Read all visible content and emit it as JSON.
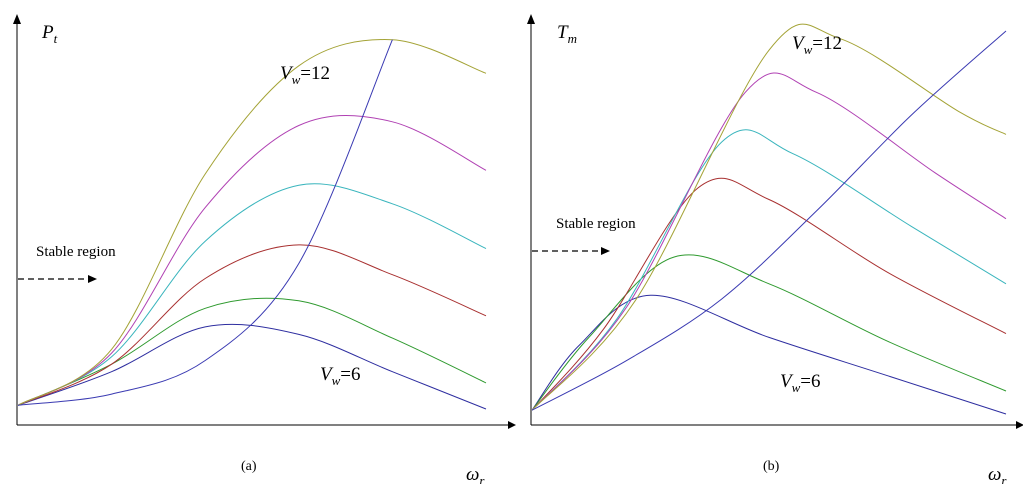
{
  "colors": {
    "axis": "#000000",
    "series": [
      "#2e2ea0",
      "#2f9a2f",
      "#a83030",
      "#3ab5bd",
      "#b041b3",
      "#a4a336"
    ],
    "locus": "#3a3ab2"
  },
  "chart_data": [
    {
      "type": "line",
      "panel_label": "(a)",
      "ylabel_main": "P",
      "ylabel_sub": "t",
      "xlabel_main": "ω",
      "xlabel_sub": "r",
      "annotations": [
        {
          "main": "V",
          "sub": "w",
          "rest": "=12"
        },
        {
          "main": "V",
          "sub": "w",
          "rest": "=6"
        },
        {
          "text": "Stable region"
        }
      ],
      "xlim": [
        0,
        1
      ],
      "ylim": [
        0,
        1
      ],
      "series": [
        {
          "values": [
            [
              0.0,
              0.01
            ],
            [
              0.2,
              0.1
            ],
            [
              0.4,
              0.22
            ],
            [
              0.6,
              0.2
            ],
            [
              0.8,
              0.1
            ],
            [
              1.0,
              0.0
            ]
          ]
        },
        {
          "values": [
            [
              0.0,
              0.01
            ],
            [
              0.2,
              0.12
            ],
            [
              0.4,
              0.27
            ],
            [
              0.6,
              0.29
            ],
            [
              0.8,
              0.19
            ],
            [
              1.0,
              0.07
            ]
          ]
        },
        {
          "values": [
            [
              0.0,
              0.01
            ],
            [
              0.2,
              0.12
            ],
            [
              0.4,
              0.35
            ],
            [
              0.6,
              0.44
            ],
            [
              0.8,
              0.36
            ],
            [
              1.0,
              0.25
            ]
          ]
        },
        {
          "values": [
            [
              0.0,
              0.01
            ],
            [
              0.2,
              0.14
            ],
            [
              0.4,
              0.45
            ],
            [
              0.6,
              0.6
            ],
            [
              0.8,
              0.55
            ],
            [
              1.0,
              0.43
            ]
          ]
        },
        {
          "values": [
            [
              0.0,
              0.01
            ],
            [
              0.2,
              0.15
            ],
            [
              0.4,
              0.54
            ],
            [
              0.6,
              0.76
            ],
            [
              0.8,
              0.77
            ],
            [
              1.0,
              0.64
            ]
          ]
        },
        {
          "values": [
            [
              0.0,
              0.01
            ],
            [
              0.2,
              0.16
            ],
            [
              0.4,
              0.63
            ],
            [
              0.6,
              0.92
            ],
            [
              0.8,
              0.99
            ],
            [
              1.0,
              0.9
            ]
          ]
        },
        {
          "values": [
            [
              0.0,
              0.01
            ],
            [
              0.2,
              0.04
            ],
            [
              0.4,
              0.13
            ],
            [
              0.6,
              0.39
            ],
            [
              0.8,
              0.99
            ]
          ]
        }
      ]
    },
    {
      "type": "line",
      "panel_label": "(b)",
      "ylabel_main": "T",
      "ylabel_sub": "m",
      "xlabel_main": "ω",
      "xlabel_sub": "r",
      "annotations": [
        {
          "main": "V",
          "sub": "w",
          "rest": "=12"
        },
        {
          "main": "V",
          "sub": "w",
          "rest": "=6"
        },
        {
          "text": "Stable region"
        }
      ],
      "xlim": [
        0,
        1
      ],
      "ylim": [
        0,
        1
      ],
      "series": [
        {
          "values": [
            [
              0.0,
              0.01
            ],
            [
              0.1,
              0.18
            ],
            [
              0.25,
              0.31
            ],
            [
              0.5,
              0.2
            ],
            [
              0.75,
              0.1
            ],
            [
              1.0,
              0.0
            ]
          ]
        },
        {
          "values": [
            [
              0.0,
              0.01
            ],
            [
              0.12,
              0.2
            ],
            [
              0.3,
              0.41
            ],
            [
              0.5,
              0.34
            ],
            [
              0.75,
              0.19
            ],
            [
              1.0,
              0.06
            ]
          ]
        },
        {
          "values": [
            [
              0.0,
              0.01
            ],
            [
              0.15,
              0.22
            ],
            [
              0.35,
              0.59
            ],
            [
              0.5,
              0.56
            ],
            [
              0.75,
              0.37
            ],
            [
              1.0,
              0.21
            ]
          ]
        },
        {
          "values": [
            [
              0.0,
              0.01
            ],
            [
              0.18,
              0.25
            ],
            [
              0.4,
              0.71
            ],
            [
              0.55,
              0.68
            ],
            [
              0.8,
              0.49
            ],
            [
              1.0,
              0.34
            ]
          ]
        },
        {
          "values": [
            [
              0.0,
              0.01
            ],
            [
              0.2,
              0.28
            ],
            [
              0.45,
              0.84
            ],
            [
              0.6,
              0.84
            ],
            [
              0.85,
              0.63
            ],
            [
              1.0,
              0.51
            ]
          ]
        },
        {
          "values": [
            [
              0.0,
              0.01
            ],
            [
              0.22,
              0.3
            ],
            [
              0.5,
              0.95
            ],
            [
              0.65,
              0.98
            ],
            [
              0.9,
              0.79
            ],
            [
              1.0,
              0.73
            ]
          ]
        },
        {
          "values": [
            [
              0.0,
              0.01
            ],
            [
              0.2,
              0.14
            ],
            [
              0.4,
              0.3
            ],
            [
              0.6,
              0.53
            ],
            [
              0.8,
              0.78
            ],
            [
              1.0,
              1.0
            ]
          ]
        }
      ]
    }
  ]
}
